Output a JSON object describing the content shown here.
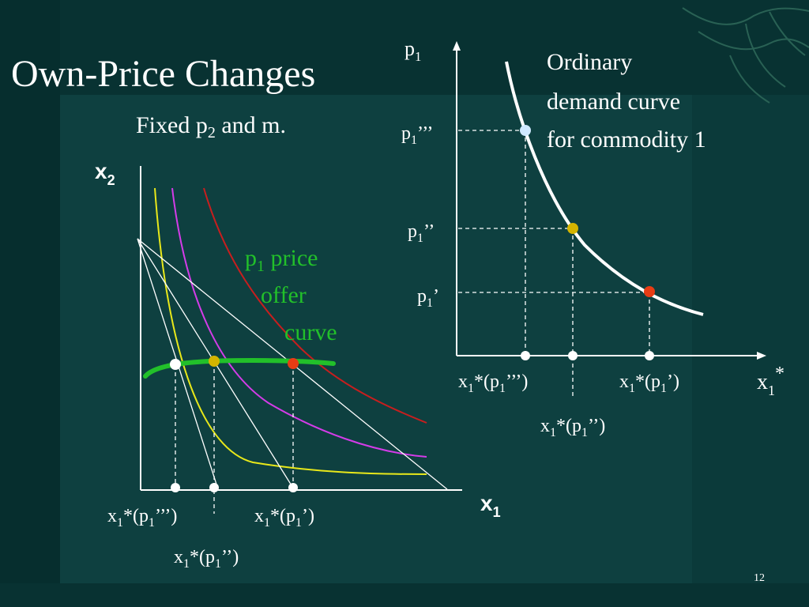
{
  "slide": {
    "title": "Own-Price Changes",
    "subtitle_pre": "Fixed p",
    "subtitle_sub": "2",
    "subtitle_post": " and m.",
    "page_number": "12"
  },
  "left_chart": {
    "x_axis_label": "x",
    "x_axis_sub": "1",
    "y_axis_label": "x",
    "y_axis_sub": "2",
    "offer_curve_line1_main": "p",
    "offer_curve_line1_sub": "1",
    "offer_curve_line1_rest": " price",
    "offer_curve_line2": "offer",
    "offer_curve_line3": "curve",
    "tick_triple_prime": {
      "a": "x",
      "b": "1",
      "c": "*(p",
      "d": "1",
      "e": "’’’)"
    },
    "tick_double_prime": {
      "a": "x",
      "b": "1",
      "c": "*(p",
      "d": "1",
      "e": "’’)"
    },
    "tick_prime": {
      "a": "x",
      "b": "1",
      "c": "*(p",
      "d": "1",
      "e": "’)"
    }
  },
  "right_chart": {
    "y_axis_label": "p",
    "y_axis_sub": "1",
    "x_axis_label": "x",
    "x_axis_sub": "1",
    "x_axis_sup": "*",
    "annotation_line1": "Ordinary",
    "annotation_line2": "demand curve",
    "annotation_line3": "for commodity 1",
    "price_triple_prime": {
      "a": "p",
      "b": "1",
      "c": "’’’"
    },
    "price_double_prime": {
      "a": "p",
      "b": "1",
      "c": "’’"
    },
    "price_prime": {
      "a": "p",
      "b": "1",
      "c": "’"
    },
    "tick_triple_prime": {
      "a": "x",
      "b": "1",
      "c": "*(p",
      "d": "1",
      "e": "’’’)"
    },
    "tick_double_prime": {
      "a": "x",
      "b": "1",
      "c": "*(p",
      "d": "1",
      "e": "’’)"
    },
    "tick_prime": {
      "a": "x",
      "b": "1",
      "c": "*(p",
      "d": "1",
      "e": "’)"
    }
  },
  "colors": {
    "background": "#0b3a3a",
    "indifference_yellow": "#e8e81a",
    "indifference_magenta": "#d43ce8",
    "indifference_red": "#c81e1e",
    "offer_curve_green": "#22c02a",
    "point_white": "#ffffff",
    "point_yellow": "#d4b400",
    "point_red": "#e83c14",
    "point_lightblue": "#cfe8ff"
  }
}
